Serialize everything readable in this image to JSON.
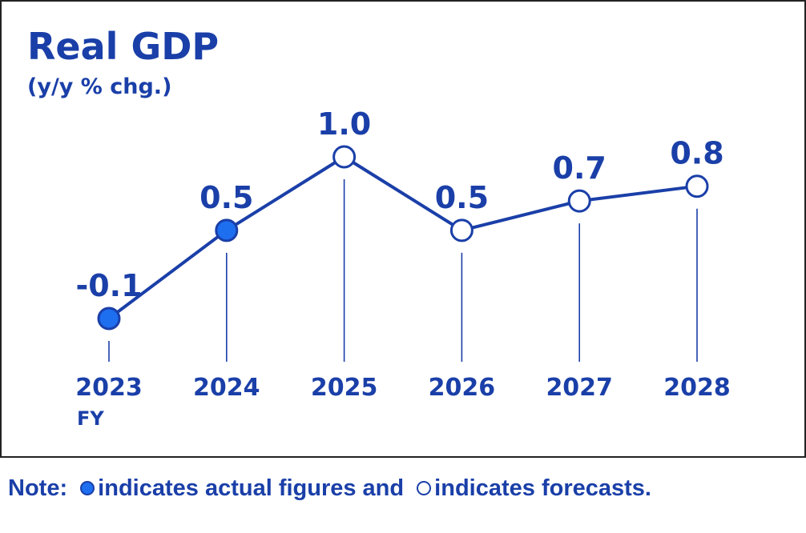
{
  "colors": {
    "line": "#1a3fa8",
    "actual_fill": "#1e6ef0",
    "forecast_fill": "#ffffff",
    "text": "#1a3fa8",
    "guide": "#1a3fa8"
  },
  "chart_data": {
    "type": "line",
    "title": "Real GDP",
    "subtitle": "(y/y % chg.)",
    "axis_label": "FY",
    "categories": [
      "2023",
      "2024",
      "2025",
      "2026",
      "2027",
      "2028"
    ],
    "series": [
      {
        "values": [
          -0.1,
          0.5,
          1.0,
          0.5,
          0.7,
          0.8
        ],
        "data_labels": [
          "-0.1",
          "0.5",
          "1.0",
          "0.5",
          "0.7",
          "0.8"
        ],
        "status": [
          "actual",
          "actual",
          "forecast",
          "forecast",
          "forecast",
          "forecast"
        ]
      }
    ],
    "ylim": [
      -0.1,
      1.0
    ],
    "grid": false,
    "legend": "none"
  },
  "note": {
    "prefix": "Note: ",
    "actual_text": "indicates actual figures and ",
    "forecast_text": "indicates forecasts."
  }
}
